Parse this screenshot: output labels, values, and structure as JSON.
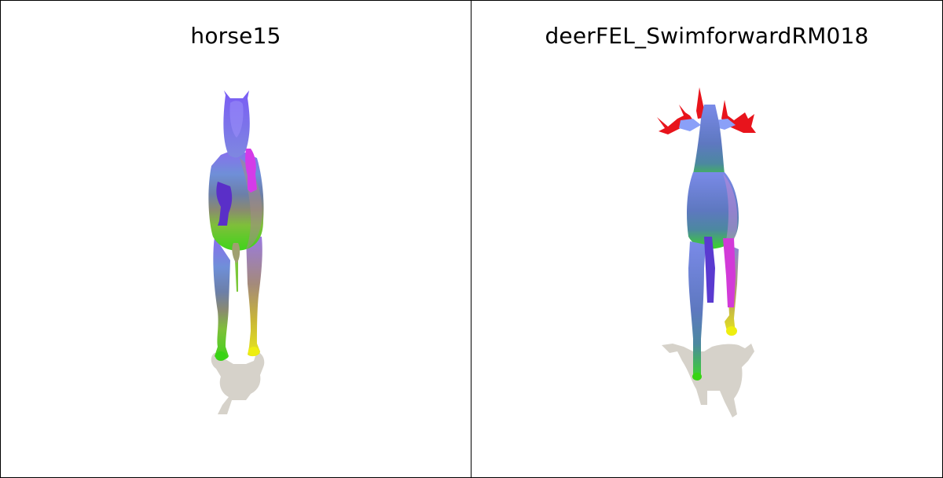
{
  "panels": [
    {
      "title": "horse15",
      "model": "horse"
    },
    {
      "title": "deerFEL_SwimforwardRM018",
      "model": "deer"
    }
  ],
  "colors": {
    "background": "#ffffff",
    "border": "#000000",
    "shadow": "#d6d2ca",
    "antler": "#e8141c"
  }
}
